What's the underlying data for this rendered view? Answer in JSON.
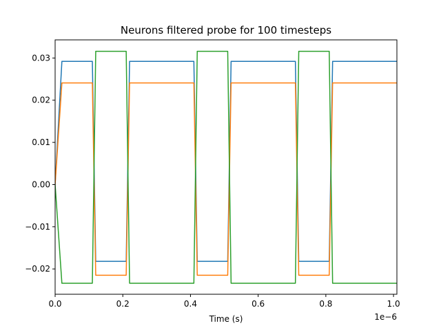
{
  "chart_data": {
    "type": "line",
    "title": "Neurons filtered probe for 100 timesteps",
    "xlabel": "Time (s)",
    "ylabel": "",
    "x_offset_label": "1e−6",
    "xlim": [
      0,
      1.01
    ],
    "ylim": [
      -0.026,
      0.0343
    ],
    "x_ticks": [
      {
        "value": 0.0,
        "label": "0.0"
      },
      {
        "value": 0.2,
        "label": "0.2"
      },
      {
        "value": 0.4,
        "label": "0.4"
      },
      {
        "value": 0.6,
        "label": "0.6"
      },
      {
        "value": 0.8,
        "label": "0.8"
      },
      {
        "value": 1.0,
        "label": "1.0"
      }
    ],
    "y_ticks": [
      {
        "value": 0.03,
        "label": "0.03"
      },
      {
        "value": 0.02,
        "label": "0.02"
      },
      {
        "value": 0.01,
        "label": "0.01"
      },
      {
        "value": 0.0,
        "label": "0.00"
      },
      {
        "value": -0.01,
        "label": "−0.01"
      },
      {
        "value": -0.02,
        "label": "−0.02"
      }
    ],
    "grid": false,
    "series": [
      {
        "color": "#1f77b4",
        "x": [
          0.0,
          0.02,
          0.11,
          0.12,
          0.21,
          0.22,
          0.41,
          0.42,
          0.51,
          0.52,
          0.71,
          0.72,
          0.81,
          0.82,
          1.01
        ],
        "y": [
          0.0,
          0.0292,
          0.0292,
          -0.0182,
          -0.0182,
          0.0292,
          0.0292,
          -0.0182,
          -0.0182,
          0.0292,
          0.0292,
          -0.0182,
          -0.0182,
          0.0292,
          0.0292
        ]
      },
      {
        "color": "#ff7f0e",
        "x": [
          0.0,
          0.02,
          0.11,
          0.12,
          0.21,
          0.22,
          0.41,
          0.42,
          0.51,
          0.52,
          0.71,
          0.72,
          0.81,
          0.82,
          1.01
        ],
        "y": [
          0.0,
          0.0241,
          0.0241,
          -0.0215,
          -0.0215,
          0.0241,
          0.0241,
          -0.0215,
          -0.0215,
          0.0241,
          0.0241,
          -0.0215,
          -0.0215,
          0.0241,
          0.0241
        ]
      },
      {
        "color": "#2ca02c",
        "x": [
          0.0,
          0.02,
          0.11,
          0.12,
          0.21,
          0.22,
          0.41,
          0.42,
          0.51,
          0.52,
          0.71,
          0.72,
          0.81,
          0.82,
          1.01
        ],
        "y": [
          0.0,
          -0.0234,
          -0.0234,
          0.0316,
          0.0316,
          -0.0234,
          -0.0234,
          0.0316,
          0.0316,
          -0.0234,
          -0.0234,
          0.0316,
          0.0316,
          -0.0234,
          -0.0234
        ]
      }
    ]
  }
}
